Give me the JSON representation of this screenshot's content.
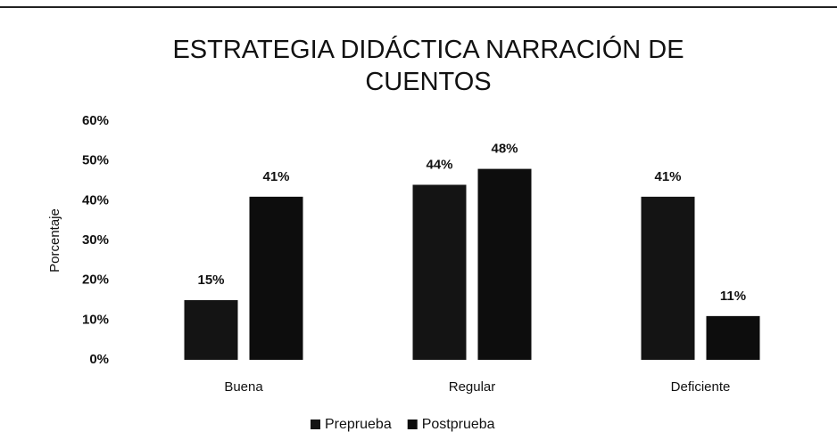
{
  "chart_data": {
    "type": "bar",
    "title": "ESTRATEGIA DIDÁCTICA NARRACIÓN DE CUENTOS",
    "y_label": "Porcentaje",
    "categories": [
      "Buena",
      "Regular",
      "Deficiente"
    ],
    "series": [
      {
        "name": "Preprueba",
        "color": "#141414",
        "values": [
          15,
          44,
          41
        ],
        "value_labels": [
          "15%",
          "44%",
          "41%"
        ]
      },
      {
        "name": "Postprueba",
        "color": "#0d0d0d",
        "values": [
          41,
          48,
          11
        ],
        "value_labels": [
          "41%",
          "48%",
          "11%"
        ]
      }
    ],
    "ylim": [
      0,
      60
    ],
    "yticks": [
      {
        "value": 0,
        "label": "0%"
      },
      {
        "value": 10,
        "label": "10%"
      },
      {
        "value": 20,
        "label": "20%"
      },
      {
        "value": 30,
        "label": "30%"
      },
      {
        "value": 40,
        "label": "40%"
      },
      {
        "value": 50,
        "label": "50%"
      },
      {
        "value": 60,
        "label": "60%"
      }
    ],
    "grid": false,
    "legend": "bottom"
  }
}
